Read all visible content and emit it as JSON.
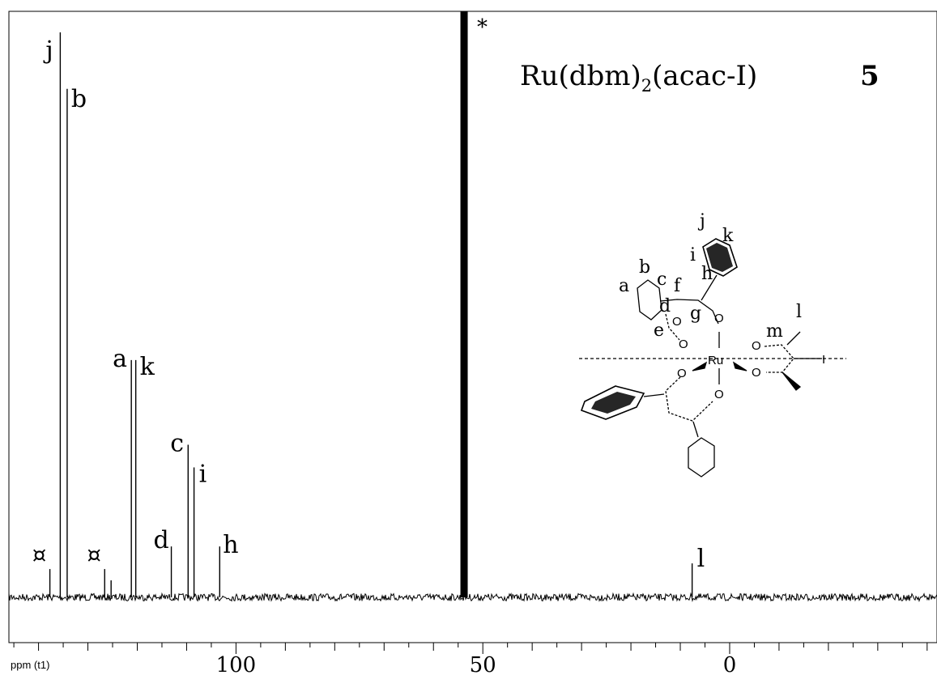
{
  "title": {
    "compound": "Ru(dbm)",
    "sub": "2",
    "rest": "(acac-I)",
    "number": "5"
  },
  "axis": {
    "unit_label": "ppm (t1)",
    "ticks": [
      100,
      50,
      0
    ]
  },
  "chart_data": {
    "type": "line",
    "xlabel": "ppm (t1)",
    "x_reversed": true,
    "xlim": [
      146,
      -42
    ],
    "peaks": [
      {
        "label": "¤",
        "ppm": 137.7,
        "height": 0.05
      },
      {
        "label": "j",
        "ppm": 135.6,
        "height": 1.0
      },
      {
        "label": "b",
        "ppm": 134.2,
        "height": 0.9
      },
      {
        "label": "¤",
        "ppm": 126.6,
        "height": 0.05
      },
      {
        "label": "",
        "ppm": 125.3,
        "height": 0.03
      },
      {
        "label": "a",
        "ppm": 121.2,
        "height": 0.42
      },
      {
        "label": "k",
        "ppm": 120.3,
        "height": 0.42
      },
      {
        "label": "d",
        "ppm": 113.1,
        "height": 0.09
      },
      {
        "label": "c",
        "ppm": 109.7,
        "height": 0.27
      },
      {
        "label": "i",
        "ppm": 108.5,
        "height": 0.23
      },
      {
        "label": "h",
        "ppm": 103.3,
        "height": 0.09
      },
      {
        "label": "*",
        "ppm": 53.8,
        "height": 1.1
      },
      {
        "label": "l",
        "ppm": 7.6,
        "height": 0.06
      }
    ]
  },
  "structure_labels": [
    "j",
    "k",
    "i",
    "h",
    "b",
    "a",
    "c",
    "f",
    "d",
    "g",
    "e",
    "l",
    "m",
    "Ru",
    "I"
  ]
}
